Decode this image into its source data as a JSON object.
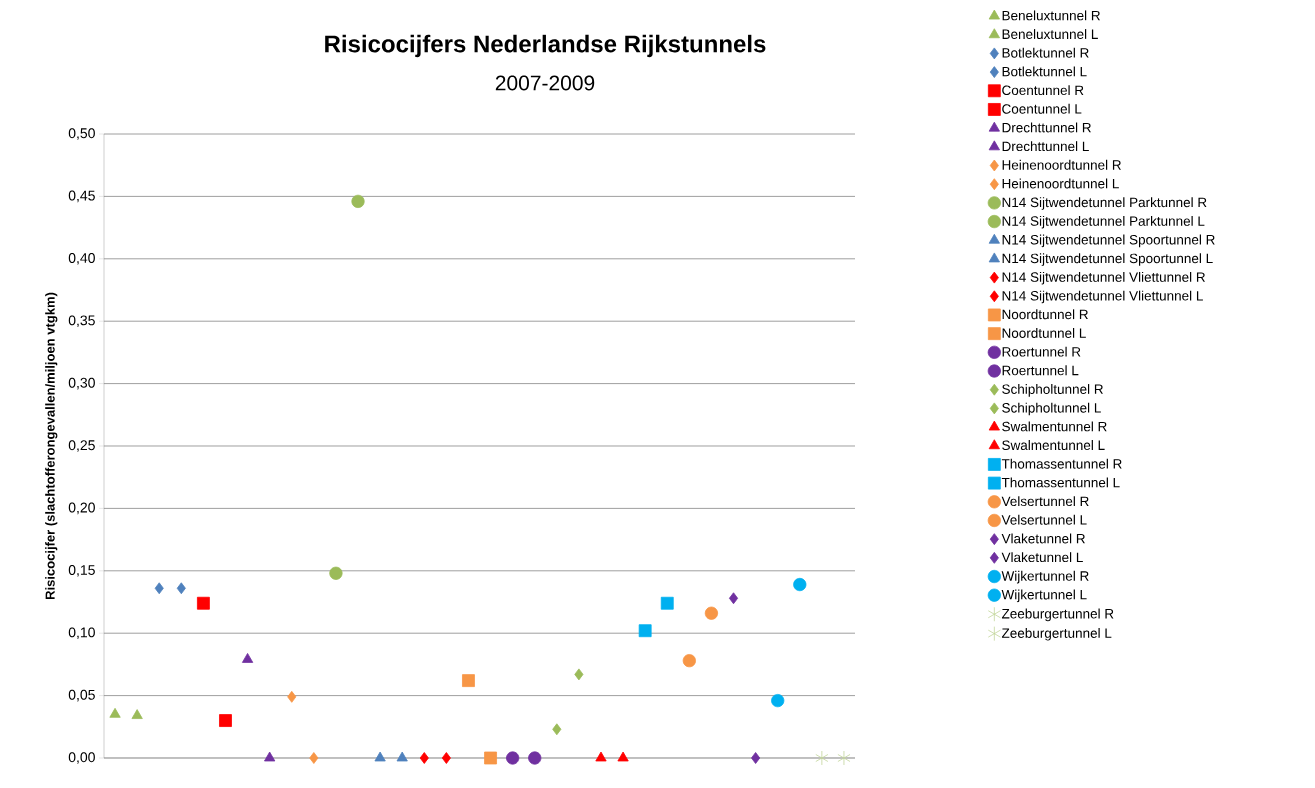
{
  "chart_data": {
    "type": "scatter",
    "title": "Risicocijfers Nederlandse  Rijkstunnels",
    "subtitle": "2007-2009",
    "ylabel": "Risicocijfer (slachtofferongevallen/miljoen vtgkm)",
    "categories": [
      null,
      null,
      null,
      null,
      null,
      null,
      null,
      null,
      null,
      null,
      null,
      null,
      null,
      null,
      null,
      null,
      null,
      null,
      null,
      null,
      null,
      null,
      null,
      null,
      null,
      null,
      null,
      null,
      null,
      null,
      null,
      null,
      null,
      null
    ],
    "ylim": [
      0,
      0.5
    ],
    "yticks": [
      {
        "value": 0,
        "label": "0,00"
      },
      {
        "value": 0.05,
        "label": "0,05"
      },
      {
        "value": 0.1,
        "label": "0,10"
      },
      {
        "value": 0.15,
        "label": "0,15"
      },
      {
        "value": 0.2,
        "label": "0,20"
      },
      {
        "value": 0.25,
        "label": "0,25"
      },
      {
        "value": 0.3,
        "label": "0,30"
      },
      {
        "value": 0.35,
        "label": "0,35"
      },
      {
        "value": 0.4,
        "label": "0,40"
      },
      {
        "value": 0.45,
        "label": "0,45"
      },
      {
        "value": 0.5,
        "label": "0,50"
      }
    ],
    "grid": "y",
    "legend": "right",
    "series": [
      {
        "name": "Beneluxtunnel R",
        "color": "#9bbb59",
        "marker": "triangle",
        "values": [
          0.035,
          null,
          null,
          null,
          null,
          null,
          null,
          null,
          null,
          null,
          null,
          null,
          null,
          null,
          null,
          null,
          null,
          null,
          null,
          null,
          null,
          null,
          null,
          null,
          null,
          null,
          null,
          null,
          null,
          null,
          null,
          null,
          null,
          null
        ]
      },
      {
        "name": "Beneluxtunnel L",
        "color": "#9bbb59",
        "marker": "triangle",
        "values": [
          null,
          0.034,
          null,
          null,
          null,
          null,
          null,
          null,
          null,
          null,
          null,
          null,
          null,
          null,
          null,
          null,
          null,
          null,
          null,
          null,
          null,
          null,
          null,
          null,
          null,
          null,
          null,
          null,
          null,
          null,
          null,
          null,
          null,
          null
        ]
      },
      {
        "name": "Botlektunnel R",
        "color": "#4f81bd",
        "marker": "diamond",
        "values": [
          null,
          null,
          0.136,
          null,
          null,
          null,
          null,
          null,
          null,
          null,
          null,
          null,
          null,
          null,
          null,
          null,
          null,
          null,
          null,
          null,
          null,
          null,
          null,
          null,
          null,
          null,
          null,
          null,
          null,
          null,
          null,
          null,
          null,
          null
        ]
      },
      {
        "name": "Botlektunnel L",
        "color": "#4f81bd",
        "marker": "diamond",
        "values": [
          null,
          null,
          null,
          0.136,
          null,
          null,
          null,
          null,
          null,
          null,
          null,
          null,
          null,
          null,
          null,
          null,
          null,
          null,
          null,
          null,
          null,
          null,
          null,
          null,
          null,
          null,
          null,
          null,
          null,
          null,
          null,
          null,
          null,
          null
        ]
      },
      {
        "name": "Coentunnel R",
        "color": "#ff0000",
        "marker": "square",
        "values": [
          null,
          null,
          null,
          null,
          0.124,
          null,
          null,
          null,
          null,
          null,
          null,
          null,
          null,
          null,
          null,
          null,
          null,
          null,
          null,
          null,
          null,
          null,
          null,
          null,
          null,
          null,
          null,
          null,
          null,
          null,
          null,
          null,
          null,
          null
        ]
      },
      {
        "name": "Coentunnel L",
        "color": "#ff0000",
        "marker": "square",
        "values": [
          null,
          null,
          null,
          null,
          null,
          0.03,
          null,
          null,
          null,
          null,
          null,
          null,
          null,
          null,
          null,
          null,
          null,
          null,
          null,
          null,
          null,
          null,
          null,
          null,
          null,
          null,
          null,
          null,
          null,
          null,
          null,
          null,
          null,
          null
        ]
      },
      {
        "name": "Drechttunnel R",
        "color": "#7030a0",
        "marker": "triangle",
        "values": [
          null,
          null,
          null,
          null,
          null,
          null,
          0.079,
          null,
          null,
          null,
          null,
          null,
          null,
          null,
          null,
          null,
          null,
          null,
          null,
          null,
          null,
          null,
          null,
          null,
          null,
          null,
          null,
          null,
          null,
          null,
          null,
          null,
          null,
          null
        ]
      },
      {
        "name": "Drechttunnel L",
        "color": "#7030a0",
        "marker": "triangle",
        "values": [
          null,
          null,
          null,
          null,
          null,
          null,
          null,
          0,
          null,
          null,
          null,
          null,
          null,
          null,
          null,
          null,
          null,
          null,
          null,
          null,
          null,
          null,
          null,
          null,
          null,
          null,
          null,
          null,
          null,
          null,
          null,
          null,
          null,
          null
        ]
      },
      {
        "name": "Heinenoordtunnel R",
        "color": "#f79646",
        "marker": "diamond",
        "values": [
          null,
          null,
          null,
          null,
          null,
          null,
          null,
          null,
          0.049,
          null,
          null,
          null,
          null,
          null,
          null,
          null,
          null,
          null,
          null,
          null,
          null,
          null,
          null,
          null,
          null,
          null,
          null,
          null,
          null,
          null,
          null,
          null,
          null,
          null
        ]
      },
      {
        "name": "Heinenoordtunnel L",
        "color": "#f79646",
        "marker": "diamond",
        "values": [
          null,
          null,
          null,
          null,
          null,
          null,
          null,
          null,
          null,
          0,
          null,
          null,
          null,
          null,
          null,
          null,
          null,
          null,
          null,
          null,
          null,
          null,
          null,
          null,
          null,
          null,
          null,
          null,
          null,
          null,
          null,
          null,
          null,
          null
        ]
      },
      {
        "name": "N14 Sijtwendetunnel Parktunnel R",
        "color": "#9bbb59",
        "marker": "circle",
        "values": [
          null,
          null,
          null,
          null,
          null,
          null,
          null,
          null,
          null,
          null,
          0.148,
          null,
          null,
          null,
          null,
          null,
          null,
          null,
          null,
          null,
          null,
          null,
          null,
          null,
          null,
          null,
          null,
          null,
          null,
          null,
          null,
          null,
          null,
          null
        ]
      },
      {
        "name": "N14 Sijtwendetunnel Parktunnel L",
        "color": "#9bbb59",
        "marker": "circle",
        "values": [
          null,
          null,
          null,
          null,
          null,
          null,
          null,
          null,
          null,
          null,
          null,
          0.446,
          null,
          null,
          null,
          null,
          null,
          null,
          null,
          null,
          null,
          null,
          null,
          null,
          null,
          null,
          null,
          null,
          null,
          null,
          null,
          null,
          null,
          null
        ]
      },
      {
        "name": "N14 Sijtwendetunnel Spoortunnel R",
        "color": "#4f81bd",
        "marker": "triangle",
        "values": [
          null,
          null,
          null,
          null,
          null,
          null,
          null,
          null,
          null,
          null,
          null,
          null,
          0,
          null,
          null,
          null,
          null,
          null,
          null,
          null,
          null,
          null,
          null,
          null,
          null,
          null,
          null,
          null,
          null,
          null,
          null,
          null,
          null,
          null
        ]
      },
      {
        "name": "N14 Sijtwendetunnel Spoortunnel L",
        "color": "#4f81bd",
        "marker": "triangle",
        "values": [
          null,
          null,
          null,
          null,
          null,
          null,
          null,
          null,
          null,
          null,
          null,
          null,
          null,
          0,
          null,
          null,
          null,
          null,
          null,
          null,
          null,
          null,
          null,
          null,
          null,
          null,
          null,
          null,
          null,
          null,
          null,
          null,
          null,
          null
        ]
      },
      {
        "name": "N14 Sijtwendetunnel Vliettunnel R",
        "color": "#ff0000",
        "marker": "diamond",
        "values": [
          null,
          null,
          null,
          null,
          null,
          null,
          null,
          null,
          null,
          null,
          null,
          null,
          null,
          null,
          0,
          null,
          null,
          null,
          null,
          null,
          null,
          null,
          null,
          null,
          null,
          null,
          null,
          null,
          null,
          null,
          null,
          null,
          null,
          null
        ]
      },
      {
        "name": "N14 Sijtwendetunnel Vliettunnel L",
        "color": "#ff0000",
        "marker": "diamond",
        "values": [
          null,
          null,
          null,
          null,
          null,
          null,
          null,
          null,
          null,
          null,
          null,
          null,
          null,
          null,
          null,
          0,
          null,
          null,
          null,
          null,
          null,
          null,
          null,
          null,
          null,
          null,
          null,
          null,
          null,
          null,
          null,
          null,
          null,
          null
        ]
      },
      {
        "name": "Noordtunnel R",
        "color": "#f79646",
        "marker": "square",
        "values": [
          null,
          null,
          null,
          null,
          null,
          null,
          null,
          null,
          null,
          null,
          null,
          null,
          null,
          null,
          null,
          null,
          0.062,
          null,
          null,
          null,
          null,
          null,
          null,
          null,
          null,
          null,
          null,
          null,
          null,
          null,
          null,
          null,
          null,
          null
        ]
      },
      {
        "name": "Noordtunnel L",
        "color": "#f79646",
        "marker": "square",
        "values": [
          null,
          null,
          null,
          null,
          null,
          null,
          null,
          null,
          null,
          null,
          null,
          null,
          null,
          null,
          null,
          null,
          null,
          0,
          null,
          null,
          null,
          null,
          null,
          null,
          null,
          null,
          null,
          null,
          null,
          null,
          null,
          null,
          null,
          null
        ]
      },
      {
        "name": "Roertunnel R",
        "color": "#7030a0",
        "marker": "circle",
        "values": [
          null,
          null,
          null,
          null,
          null,
          null,
          null,
          null,
          null,
          null,
          null,
          null,
          null,
          null,
          null,
          null,
          null,
          null,
          0,
          null,
          null,
          null,
          null,
          null,
          null,
          null,
          null,
          null,
          null,
          null,
          null,
          null,
          null,
          null
        ]
      },
      {
        "name": "Roertunnel L",
        "color": "#7030a0",
        "marker": "circle",
        "values": [
          null,
          null,
          null,
          null,
          null,
          null,
          null,
          null,
          null,
          null,
          null,
          null,
          null,
          null,
          null,
          null,
          null,
          null,
          null,
          0,
          null,
          null,
          null,
          null,
          null,
          null,
          null,
          null,
          null,
          null,
          null,
          null,
          null,
          null
        ]
      },
      {
        "name": "Schipholtunnel R",
        "color": "#9bbb59",
        "marker": "diamond",
        "values": [
          null,
          null,
          null,
          null,
          null,
          null,
          null,
          null,
          null,
          null,
          null,
          null,
          null,
          null,
          null,
          null,
          null,
          null,
          null,
          null,
          0.023,
          null,
          null,
          null,
          null,
          null,
          null,
          null,
          null,
          null,
          null,
          null,
          null,
          null
        ]
      },
      {
        "name": "Schipholtunnel L",
        "color": "#9bbb59",
        "marker": "diamond",
        "values": [
          null,
          null,
          null,
          null,
          null,
          null,
          null,
          null,
          null,
          null,
          null,
          null,
          null,
          null,
          null,
          null,
          null,
          null,
          null,
          null,
          null,
          0.067,
          null,
          null,
          null,
          null,
          null,
          null,
          null,
          null,
          null,
          null,
          null,
          null
        ]
      },
      {
        "name": "Swalmentunnel R",
        "color": "#ff0000",
        "marker": "triangle",
        "values": [
          null,
          null,
          null,
          null,
          null,
          null,
          null,
          null,
          null,
          null,
          null,
          null,
          null,
          null,
          null,
          null,
          null,
          null,
          null,
          null,
          null,
          null,
          0,
          null,
          null,
          null,
          null,
          null,
          null,
          null,
          null,
          null,
          null,
          null
        ]
      },
      {
        "name": "Swalmentunnel L",
        "color": "#ff0000",
        "marker": "triangle",
        "values": [
          null,
          null,
          null,
          null,
          null,
          null,
          null,
          null,
          null,
          null,
          null,
          null,
          null,
          null,
          null,
          null,
          null,
          null,
          null,
          null,
          null,
          null,
          null,
          0,
          null,
          null,
          null,
          null,
          null,
          null,
          null,
          null,
          null,
          null
        ]
      },
      {
        "name": "Thomassentunnel R",
        "color": "#00b0f0",
        "marker": "square",
        "values": [
          null,
          null,
          null,
          null,
          null,
          null,
          null,
          null,
          null,
          null,
          null,
          null,
          null,
          null,
          null,
          null,
          null,
          null,
          null,
          null,
          null,
          null,
          null,
          null,
          0.102,
          null,
          null,
          null,
          null,
          null,
          null,
          null,
          null,
          null
        ]
      },
      {
        "name": "Thomassentunnel L",
        "color": "#00b0f0",
        "marker": "square",
        "values": [
          null,
          null,
          null,
          null,
          null,
          null,
          null,
          null,
          null,
          null,
          null,
          null,
          null,
          null,
          null,
          null,
          null,
          null,
          null,
          null,
          null,
          null,
          null,
          null,
          null,
          0.124,
          null,
          null,
          null,
          null,
          null,
          null,
          null,
          null
        ]
      },
      {
        "name": "Velsertunnel R",
        "color": "#f79646",
        "marker": "circle",
        "values": [
          null,
          null,
          null,
          null,
          null,
          null,
          null,
          null,
          null,
          null,
          null,
          null,
          null,
          null,
          null,
          null,
          null,
          null,
          null,
          null,
          null,
          null,
          null,
          null,
          null,
          null,
          0.078,
          null,
          null,
          null,
          null,
          null,
          null,
          null
        ]
      },
      {
        "name": "Velsertunnel L",
        "color": "#f79646",
        "marker": "circle",
        "values": [
          null,
          null,
          null,
          null,
          null,
          null,
          null,
          null,
          null,
          null,
          null,
          null,
          null,
          null,
          null,
          null,
          null,
          null,
          null,
          null,
          null,
          null,
          null,
          null,
          null,
          null,
          null,
          0.116,
          null,
          null,
          null,
          null,
          null,
          null
        ]
      },
      {
        "name": "Vlaketunnel R",
        "color": "#7030a0",
        "marker": "diamond",
        "values": [
          null,
          null,
          null,
          null,
          null,
          null,
          null,
          null,
          null,
          null,
          null,
          null,
          null,
          null,
          null,
          null,
          null,
          null,
          null,
          null,
          null,
          null,
          null,
          null,
          null,
          null,
          null,
          null,
          0.128,
          null,
          null,
          null,
          null,
          null
        ]
      },
      {
        "name": "Vlaketunnel L",
        "color": "#7030a0",
        "marker": "diamond",
        "values": [
          null,
          null,
          null,
          null,
          null,
          null,
          null,
          null,
          null,
          null,
          null,
          null,
          null,
          null,
          null,
          null,
          null,
          null,
          null,
          null,
          null,
          null,
          null,
          null,
          null,
          null,
          null,
          null,
          null,
          0,
          null,
          null,
          null,
          null
        ]
      },
      {
        "name": "Wijkertunnel R",
        "color": "#00b0f0",
        "marker": "circle",
        "values": [
          null,
          null,
          null,
          null,
          null,
          null,
          null,
          null,
          null,
          null,
          null,
          null,
          null,
          null,
          null,
          null,
          null,
          null,
          null,
          null,
          null,
          null,
          null,
          null,
          null,
          null,
          null,
          null,
          null,
          null,
          0.046,
          null,
          null,
          null
        ]
      },
      {
        "name": "Wijkertunnel L",
        "color": "#00b0f0",
        "marker": "circle",
        "values": [
          null,
          null,
          null,
          null,
          null,
          null,
          null,
          null,
          null,
          null,
          null,
          null,
          null,
          null,
          null,
          null,
          null,
          null,
          null,
          null,
          null,
          null,
          null,
          null,
          null,
          null,
          null,
          null,
          null,
          null,
          null,
          0.139,
          null,
          null
        ]
      },
      {
        "name": "Zeeburgertunnel R",
        "color": "#c3d69b",
        "marker": "cross",
        "values": [
          null,
          null,
          null,
          null,
          null,
          null,
          null,
          null,
          null,
          null,
          null,
          null,
          null,
          null,
          null,
          null,
          null,
          null,
          null,
          null,
          null,
          null,
          null,
          null,
          null,
          null,
          null,
          null,
          null,
          null,
          null,
          null,
          0,
          null
        ]
      },
      {
        "name": "Zeeburgertunnel L",
        "color": "#c3d69b",
        "marker": "cross",
        "values": [
          null,
          null,
          null,
          null,
          null,
          null,
          null,
          null,
          null,
          null,
          null,
          null,
          null,
          null,
          null,
          null,
          null,
          null,
          null,
          null,
          null,
          null,
          null,
          null,
          null,
          null,
          null,
          null,
          null,
          null,
          null,
          null,
          null,
          0
        ]
      }
    ]
  }
}
